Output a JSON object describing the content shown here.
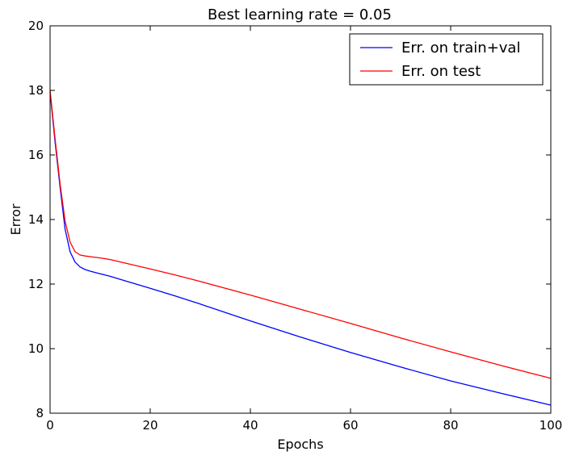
{
  "chart_data": {
    "type": "line",
    "title": "Best learning rate = 0.05",
    "xlabel": "Epochs",
    "ylabel": "Error",
    "xlim": [
      0,
      100
    ],
    "ylim": [
      8,
      20
    ],
    "x_ticks": [
      0,
      20,
      40,
      60,
      80,
      100
    ],
    "y_ticks": [
      8,
      10,
      12,
      14,
      16,
      18,
      20
    ],
    "grid": false,
    "legend_position": "top-right",
    "series": [
      {
        "name": "Err. on train+val",
        "color": "#0000ff",
        "x": [
          0,
          1,
          2,
          3,
          4,
          5,
          6,
          7,
          8,
          10,
          12,
          15,
          20,
          25,
          30,
          40,
          50,
          60,
          70,
          80,
          90,
          100
        ],
        "y": [
          17.95,
          16.4,
          15.0,
          13.7,
          13.0,
          12.68,
          12.53,
          12.45,
          12.4,
          12.32,
          12.24,
          12.1,
          11.87,
          11.63,
          11.38,
          10.86,
          10.36,
          9.88,
          9.43,
          9.0,
          8.62,
          8.25
        ]
      },
      {
        "name": "Err. on test",
        "color": "#ff0000",
        "x": [
          0,
          1,
          2,
          3,
          4,
          5,
          6,
          7,
          8,
          10,
          12,
          15,
          20,
          25,
          30,
          40,
          50,
          60,
          70,
          80,
          90,
          100
        ],
        "y": [
          18.0,
          16.5,
          15.1,
          13.95,
          13.3,
          13.0,
          12.9,
          12.87,
          12.85,
          12.81,
          12.76,
          12.65,
          12.47,
          12.28,
          12.08,
          11.66,
          11.22,
          10.78,
          10.33,
          9.9,
          9.48,
          9.08
        ]
      }
    ]
  }
}
